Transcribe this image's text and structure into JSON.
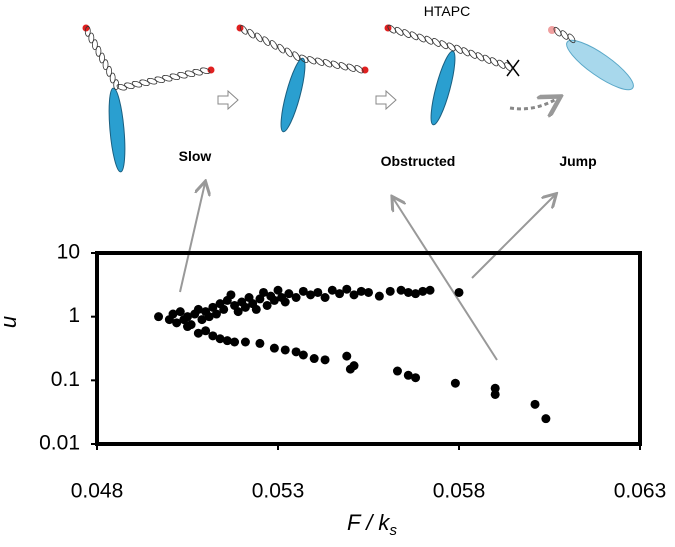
{
  "chart_data": {
    "type": "scatter",
    "annotations": {
      "top": "HTAPC",
      "slow": "Slow",
      "obstructed": "Obstructed",
      "jump": "Jump"
    },
    "ylabel": "u",
    "xlabel": "F / k",
    "xlabel_subscript": "s",
    "xlim": [
      0.048,
      0.063
    ],
    "xticks": [
      0.048,
      0.053,
      0.058,
      0.063
    ],
    "ylim": [
      0.01,
      10
    ],
    "yticks": [
      0.01,
      0.1,
      1,
      10
    ],
    "ylog": true,
    "color": "#000000",
    "x": [
      0.0497,
      0.0502,
      0.0505,
      0.0508,
      0.051,
      0.0512,
      0.0514,
      0.0516,
      0.0518,
      0.0521,
      0.0525,
      0.0529,
      0.0532,
      0.0535,
      0.0537,
      0.054,
      0.0543,
      0.0549,
      0.055,
      0.0551,
      0.0563,
      0.0566,
      0.0568,
      0.0579,
      0.059,
      0.059,
      0.0601,
      0.0604,
      0.05,
      0.0501,
      0.0503,
      0.0504,
      0.0505,
      0.0506,
      0.0507,
      0.0508,
      0.0509,
      0.051,
      0.0511,
      0.0512,
      0.0513,
      0.0514,
      0.0515,
      0.0516,
      0.0517,
      0.0518,
      0.0519,
      0.052,
      0.0521,
      0.0522,
      0.0523,
      0.0524,
      0.0525,
      0.0526,
      0.0527,
      0.0528,
      0.0529,
      0.053,
      0.0531,
      0.0532,
      0.0533,
      0.0535,
      0.0537,
      0.0539,
      0.0541,
      0.0543,
      0.0545,
      0.0547,
      0.0549,
      0.0551,
      0.0553,
      0.0555,
      0.0558,
      0.0561,
      0.0564,
      0.0566,
      0.0568,
      0.057,
      0.0572,
      0.058
    ],
    "values": [
      1.0,
      0.8,
      0.7,
      0.55,
      0.6,
      0.5,
      0.45,
      0.42,
      0.4,
      0.4,
      0.38,
      0.32,
      0.3,
      0.28,
      0.25,
      0.22,
      0.21,
      0.24,
      0.15,
      0.17,
      0.14,
      0.12,
      0.11,
      0.09,
      0.075,
      0.06,
      0.042,
      0.025,
      0.9,
      1.1,
      1.2,
      0.9,
      1.0,
      0.75,
      1.1,
      1.3,
      0.9,
      1.2,
      1.0,
      1.4,
      1.1,
      1.6,
      1.3,
      1.8,
      2.2,
      1.5,
      1.2,
      1.7,
      1.4,
      2.0,
      1.6,
      1.3,
      1.9,
      2.4,
      1.5,
      2.1,
      1.8,
      2.6,
      2.0,
      1.7,
      2.3,
      2.0,
      2.5,
      2.2,
      2.4,
      2.0,
      2.6,
      2.3,
      2.7,
      2.2,
      2.5,
      2.4,
      2.1,
      2.5,
      2.6,
      2.4,
      2.3,
      2.5,
      2.6,
      2.4
    ]
  }
}
